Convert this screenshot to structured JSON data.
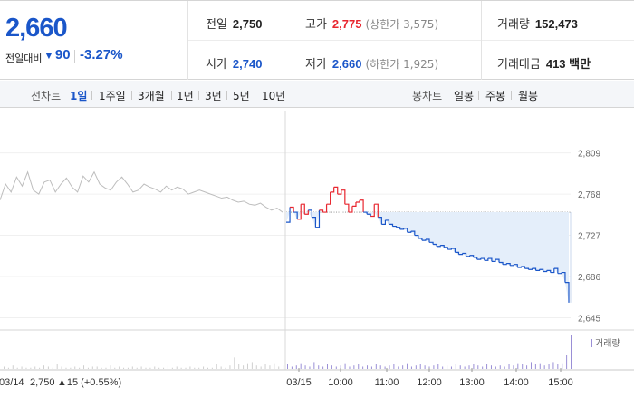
{
  "summary": {
    "current_price": "2,660",
    "change_label": "전일대비",
    "change_arrow": "▼",
    "change_value": "90",
    "change_pct": "-3.27%",
    "prev_close_label": "전일",
    "prev_close": "2,750",
    "high_label": "고가",
    "high": "2,775",
    "upper_limit": "(상한가 3,575)",
    "volume_label": "거래량",
    "volume": "152,473",
    "open_label": "시가",
    "open": "2,740",
    "low_label": "저가",
    "low": "2,660",
    "lower_limit": "(하한가 1,925)",
    "amount_label": "거래대금",
    "amount": "413 백만"
  },
  "toolbar": {
    "line_label": "선차트",
    "periods": [
      "1일",
      "1주일",
      "3개월",
      "1년",
      "3년",
      "5년",
      "10년"
    ],
    "active_period": "1일",
    "candle_label": "봉차트",
    "candles": [
      "일봉",
      "주봉",
      "월봉"
    ]
  },
  "colors": {
    "up": "#e8262f",
    "down": "#1a56c9",
    "flat": "#bdbdbd",
    "fill_down": "#e4eefa"
  },
  "chart_data": {
    "type": "line",
    "y_ticks": [
      2809,
      2768,
      2727,
      2686,
      2645
    ],
    "y_tick_labels": [
      "2,809",
      "2,768",
      "2,727",
      "2,686",
      "2,645"
    ],
    "ylim": [
      2640,
      2815
    ],
    "reference_price": 2750,
    "x_tick_labels": [
      "03/15",
      "10:00",
      "11:00",
      "12:00",
      "13:00",
      "14:00",
      "15:00"
    ],
    "prev_day_date": "03/14",
    "prev_day_close": "2,750",
    "prev_day_change": "▲15 (+0.55%)",
    "volume_label": "거래량",
    "series": [
      {
        "segment": "03/14",
        "values": [
          2762,
          2778,
          2770,
          2785,
          2776,
          2790,
          2772,
          2768,
          2780,
          2782,
          2770,
          2778,
          2784,
          2775,
          2770,
          2786,
          2780,
          2790,
          2778,
          2774,
          2772,
          2780,
          2785,
          2778,
          2770,
          2772,
          2778,
          2775,
          2773,
          2770,
          2776,
          2772,
          2775,
          2773,
          2768,
          2770,
          2772,
          2770,
          2768,
          2766,
          2764,
          2765,
          2762,
          2760,
          2761,
          2758,
          2757,
          2759,
          2755,
          2752,
          2754,
          2750
        ]
      },
      {
        "segment": "03/15",
        "values": [
          2740,
          2755,
          2750,
          2743,
          2758,
          2748,
          2752,
          2745,
          2735,
          2752,
          2750,
          2758,
          2770,
          2775,
          2768,
          2772,
          2758,
          2750,
          2756,
          2760,
          2762,
          2750,
          2748,
          2746,
          2758,
          2745,
          2738,
          2742,
          2738,
          2736,
          2735,
          2733,
          2734,
          2730,
          2731,
          2727,
          2724,
          2722,
          2723,
          2720,
          2718,
          2716,
          2717,
          2715,
          2713,
          2714,
          2710,
          2708,
          2709,
          2706,
          2707,
          2705,
          2703,
          2704,
          2702,
          2704,
          2701,
          2703,
          2700,
          2698,
          2699,
          2697,
          2698,
          2695,
          2696,
          2694,
          2693,
          2694,
          2692,
          2693,
          2691,
          2692,
          2690,
          2694,
          2689,
          2690,
          2680,
          2660
        ]
      }
    ],
    "volume": [
      2,
      1,
      3,
      1,
      2,
      1,
      1,
      2,
      1,
      3,
      2,
      1,
      4,
      2,
      1,
      1,
      2,
      1,
      3,
      1,
      2,
      2,
      1,
      1,
      3,
      1,
      2,
      1,
      1,
      2,
      1,
      2,
      1,
      1,
      2,
      1,
      1,
      3,
      1,
      2,
      1,
      1,
      2,
      1,
      1,
      2,
      1,
      1,
      4,
      2,
      1,
      3,
      10,
      4,
      3,
      5,
      6,
      3,
      2,
      4,
      3,
      5,
      2,
      3,
      4,
      2,
      3,
      5,
      3,
      2,
      6,
      3,
      2,
      4,
      3,
      2,
      3,
      5,
      2,
      3,
      4,
      2,
      3,
      2,
      4,
      3,
      2,
      3,
      4,
      2,
      3,
      5,
      2,
      3,
      4,
      3,
      2,
      3,
      4,
      2,
      3,
      2,
      4,
      3,
      2,
      3,
      4,
      3,
      2,
      4,
      3,
      2,
      3,
      2,
      4,
      3,
      5,
      4,
      3,
      6,
      4,
      5,
      3,
      4,
      6,
      4,
      5,
      12,
      30
    ]
  }
}
